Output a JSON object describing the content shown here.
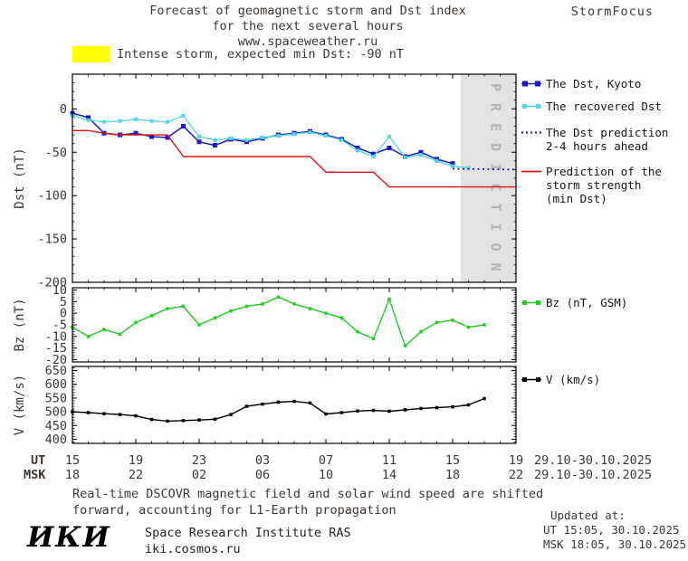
{
  "header": {
    "title_line1": "Forecast of geomagnetic storm and Dst index",
    "title_line2": "for the next several hours",
    "title_line3": "www.spaceweather.ru",
    "brand": "StormFocus"
  },
  "alert": {
    "text": "Intense storm, expected min Dst: -90 nT"
  },
  "colors": {
    "dst_kyoto": "#1a1acc",
    "recovered": "#55d6e8",
    "prediction": "#1a1acc",
    "storm_red": "#dd1111",
    "bz_green": "#22cc22",
    "v_black": "#000000",
    "alert_yellow": "#ffff00",
    "band_gray": "#e2e2e2"
  },
  "legend": {
    "dst_kyoto": [
      "The Dst, Kyoto"
    ],
    "recovered": [
      "The recovered Dst"
    ],
    "prediction": [
      "The Dst prediction",
      "2-4 hours ahead"
    ],
    "storm": [
      "Prediction of the",
      "storm strength",
      "(min Dst)"
    ],
    "bz": [
      "Bz (nT, GSM)"
    ],
    "v": [
      "V (km/s)"
    ]
  },
  "xaxis": {
    "ut_prefix": "UT",
    "msk_prefix": "MSK",
    "tick_hours": [
      0,
      4,
      8,
      12,
      16,
      20,
      24,
      28
    ],
    "ut_labels": [
      "15",
      "19",
      "23",
      "03",
      "07",
      "11",
      "15",
      "19"
    ],
    "msk_labels": [
      "18",
      "22",
      "02",
      "06",
      "10",
      "14",
      "18",
      "22"
    ],
    "ut_date": "29.10-30.10.2025",
    "msk_date": "29.10-30.10.2025"
  },
  "chart_data": [
    {
      "type": "line",
      "ylabel": "Dst (nT)",
      "ylim": [
        -200,
        40
      ],
      "yticks": [
        0,
        -50,
        -100,
        -150,
        -200
      ],
      "y_minor_step": 10,
      "xlim": [
        0,
        28
      ],
      "x_unit": "hours since 29.10.2025 15:00 UT",
      "legend_position": "right",
      "prediction_band": {
        "x_start": 24.5,
        "x_end": 28,
        "label": "P R E D I C T I O N"
      },
      "series": [
        {
          "name": "The Dst, Kyoto",
          "color": "#1a1acc",
          "marker": "square",
          "marker_size": 5,
          "line_width": 1.5,
          "x": [
            0,
            1,
            2,
            3,
            4,
            5,
            6,
            7,
            8,
            9,
            10,
            11,
            12,
            13,
            14,
            15,
            16,
            17,
            18,
            19,
            20,
            21,
            22,
            23,
            24
          ],
          "values": [
            -5,
            -10,
            -28,
            -30,
            -28,
            -32,
            -33,
            -20,
            -38,
            -42,
            -35,
            -38,
            -34,
            -30,
            -28,
            -26,
            -30,
            -35,
            -45,
            -52,
            -45,
            -55,
            -50,
            -58,
            -63
          ]
        },
        {
          "name": "The recovered Dst",
          "color": "#55d6e8",
          "marker": "square",
          "marker_size": 4,
          "line_width": 1.4,
          "x": [
            0,
            1,
            2,
            3,
            4,
            5,
            6,
            7,
            8,
            9,
            10,
            11,
            12,
            13,
            14,
            15,
            16,
            17,
            18,
            19,
            20,
            21,
            22,
            23,
            24,
            25
          ],
          "values": [
            -8,
            -13,
            -15,
            -14,
            -12,
            -14,
            -15,
            -8,
            -32,
            -36,
            -34,
            -36,
            -33,
            -31,
            -29,
            -27,
            -31,
            -36,
            -48,
            -55,
            -32,
            -56,
            -53,
            -60,
            -66,
            -68
          ]
        },
        {
          "name": "The Dst prediction 2-4 hours ahead",
          "color": "#1a1acc",
          "dashed": true,
          "marker": "none",
          "line_width": 1.8,
          "x": [
            24,
            28
          ],
          "values": [
            -69,
            -70
          ]
        },
        {
          "name": "Prediction of the storm strength (min Dst)",
          "color": "#dd1111",
          "marker": "none",
          "line_width": 1.4,
          "x": [
            0,
            1,
            2,
            3,
            4,
            5,
            6,
            7,
            8,
            9,
            10,
            11,
            12,
            13,
            14,
            15,
            16,
            17,
            18,
            19,
            20,
            21,
            22,
            23,
            24,
            25,
            26,
            27,
            28
          ],
          "values": [
            -25,
            -25,
            -28,
            -30,
            -30,
            -30,
            -30,
            -55,
            -55,
            -55,
            -55,
            -55,
            -55,
            -55,
            -55,
            -55,
            -73,
            -73,
            -73,
            -73,
            -90,
            -90,
            -90,
            -90,
            -90,
            -90,
            -90,
            -90,
            -90
          ]
        }
      ]
    },
    {
      "type": "line",
      "ylabel": "Bz (nT)",
      "ylim": [
        -21,
        11
      ],
      "yticks": [
        10,
        5,
        0,
        -5,
        -10,
        -15,
        -20
      ],
      "y_minor_step": 1,
      "xlim": [
        0,
        28
      ],
      "legend_position": "right",
      "series": [
        {
          "name": "Bz (nT, GSM)",
          "color": "#22cc22",
          "marker": "square",
          "marker_size": 3.5,
          "line_width": 1.4,
          "x": [
            0,
            1,
            2,
            3,
            4,
            5,
            6,
            7,
            8,
            9,
            10,
            11,
            12,
            13,
            14,
            15,
            16,
            17,
            18,
            19,
            20,
            21,
            22,
            23,
            24,
            25,
            26
          ],
          "values": [
            -6,
            -10,
            -7,
            -9,
            -4,
            -1,
            2,
            3,
            -5,
            -2,
            1,
            3,
            4,
            7,
            4,
            2,
            0,
            -2,
            -8,
            -11,
            6,
            -14,
            -8,
            -4,
            -3,
            -6,
            -5
          ]
        }
      ]
    },
    {
      "type": "line",
      "ylabel": "V (km/s)",
      "ylim": [
        385,
        665
      ],
      "yticks": [
        650,
        600,
        550,
        500,
        450,
        400
      ],
      "y_minor_step": 10,
      "xlim": [
        0,
        28
      ],
      "legend_position": "right",
      "series": [
        {
          "name": "V (km/s)",
          "color": "#000000",
          "marker": "square",
          "marker_size": 3.5,
          "line_width": 1.4,
          "x": [
            0,
            1,
            2,
            3,
            4,
            5,
            6,
            7,
            8,
            9,
            10,
            11,
            12,
            13,
            14,
            15,
            16,
            17,
            18,
            19,
            20,
            21,
            22,
            23,
            24,
            25,
            26
          ],
          "values": [
            500,
            497,
            493,
            490,
            485,
            472,
            466,
            468,
            470,
            473,
            490,
            520,
            528,
            535,
            538,
            532,
            492,
            497,
            503,
            505,
            502,
            507,
            512,
            515,
            518,
            525,
            548
          ]
        }
      ]
    }
  ],
  "footnote": {
    "line1": "Real-time DSCOVR magnetic field and solar wind speed are shifted",
    "line2": "forward, accounting for L1-Earth propagation"
  },
  "footer": {
    "logo": "ИКИ",
    "institute": "Space Research Institute RAS",
    "site": "iki.cosmos.ru",
    "updated_label": "Updated at:",
    "updated_ut": "UT  15:05, 30.10.2025",
    "updated_msk": "MSK 18:05, 30.10.2025"
  }
}
